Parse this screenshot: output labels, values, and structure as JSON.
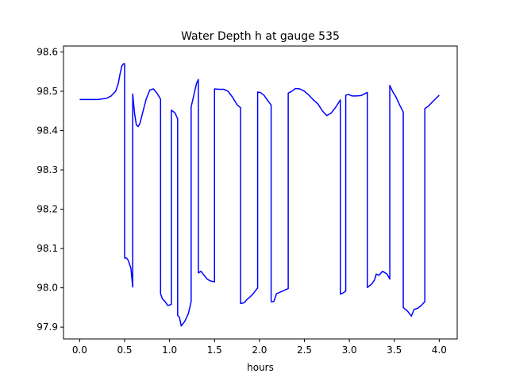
{
  "chart_data": {
    "type": "line",
    "title": "Water Depth h at gauge 535",
    "xlabel": "hours",
    "ylabel": "",
    "xlim": [
      -0.18,
      4.2
    ],
    "ylim": [
      97.87,
      98.615
    ],
    "xticks": [
      0.0,
      0.5,
      1.0,
      1.5,
      2.0,
      2.5,
      3.0,
      3.5,
      4.0
    ],
    "xtick_labels": [
      "0.0",
      "0.5",
      "1.0",
      "1.5",
      "2.0",
      "2.5",
      "3.0",
      "3.5",
      "4.0"
    ],
    "yticks": [
      97.9,
      98.0,
      98.1,
      98.2,
      98.3,
      98.4,
      98.5,
      98.6
    ],
    "ytick_labels": [
      "97.9",
      "98.0",
      "98.1",
      "98.2",
      "98.3",
      "98.4",
      "98.5",
      "98.6"
    ],
    "grid": false,
    "series": [
      {
        "color": "#0000ff",
        "x": [
          0.0,
          0.2,
          0.3,
          0.35,
          0.4,
          0.43,
          0.45,
          0.47,
          0.49,
          0.5,
          0.5,
          0.52,
          0.54,
          0.57,
          0.59,
          0.59,
          0.61,
          0.63,
          0.65,
          0.67,
          0.7,
          0.74,
          0.78,
          0.82,
          0.86,
          0.9,
          0.9,
          0.92,
          0.95,
          0.98,
          1.02,
          1.02,
          1.06,
          1.09,
          1.09,
          1.11,
          1.13,
          1.17,
          1.21,
          1.24,
          1.24,
          1.27,
          1.3,
          1.32,
          1.32,
          1.35,
          1.39,
          1.42,
          1.45,
          1.5,
          1.5,
          1.55,
          1.6,
          1.65,
          1.7,
          1.75,
          1.79,
          1.79,
          1.83,
          1.86,
          1.9,
          1.93,
          1.98,
          1.98,
          2.01,
          2.05,
          2.08,
          2.13,
          2.13,
          2.16,
          2.19,
          2.24,
          2.32,
          2.32,
          2.36,
          2.4,
          2.45,
          2.5,
          2.55,
          2.6,
          2.65,
          2.7,
          2.75,
          2.8,
          2.85,
          2.9,
          2.9,
          2.93,
          2.95,
          2.96,
          2.96,
          2.99,
          3.03,
          3.08,
          3.13,
          3.2,
          3.2,
          3.25,
          3.28,
          3.3,
          3.33,
          3.37,
          3.42,
          3.45,
          3.45,
          3.48,
          3.52,
          3.56,
          3.6,
          3.6,
          3.65,
          3.69,
          3.72,
          3.76,
          3.8,
          3.84,
          3.84,
          3.88,
          3.92,
          3.96,
          4.0
        ],
        "y": [
          98.479,
          98.479,
          98.482,
          98.488,
          98.5,
          98.52,
          98.545,
          98.565,
          98.57,
          98.57,
          98.076,
          98.076,
          98.07,
          98.05,
          98.002,
          98.493,
          98.445,
          98.415,
          98.41,
          98.418,
          98.445,
          98.48,
          98.503,
          98.506,
          98.495,
          98.48,
          97.985,
          97.972,
          97.965,
          97.955,
          97.958,
          98.452,
          98.445,
          98.43,
          97.93,
          97.925,
          97.903,
          97.915,
          97.935,
          97.965,
          98.46,
          98.49,
          98.52,
          98.53,
          98.038,
          98.042,
          98.03,
          98.022,
          98.018,
          98.015,
          98.506,
          98.505,
          98.505,
          98.5,
          98.485,
          98.466,
          98.458,
          97.96,
          97.962,
          97.97,
          97.978,
          97.985,
          98.0,
          98.498,
          98.497,
          98.49,
          98.48,
          98.465,
          97.965,
          97.965,
          97.985,
          97.99,
          97.998,
          98.495,
          98.5,
          98.507,
          98.506,
          98.5,
          98.49,
          98.478,
          98.468,
          98.45,
          98.438,
          98.445,
          98.46,
          98.478,
          97.984,
          97.987,
          97.99,
          97.992,
          98.49,
          98.492,
          98.488,
          98.488,
          98.489,
          98.497,
          98.001,
          98.01,
          98.02,
          98.035,
          98.032,
          98.042,
          98.035,
          98.022,
          98.515,
          98.5,
          98.485,
          98.465,
          98.447,
          97.95,
          97.94,
          97.928,
          97.945,
          97.948,
          97.955,
          97.965,
          98.456,
          98.462,
          98.472,
          98.481,
          98.49
        ]
      }
    ]
  }
}
